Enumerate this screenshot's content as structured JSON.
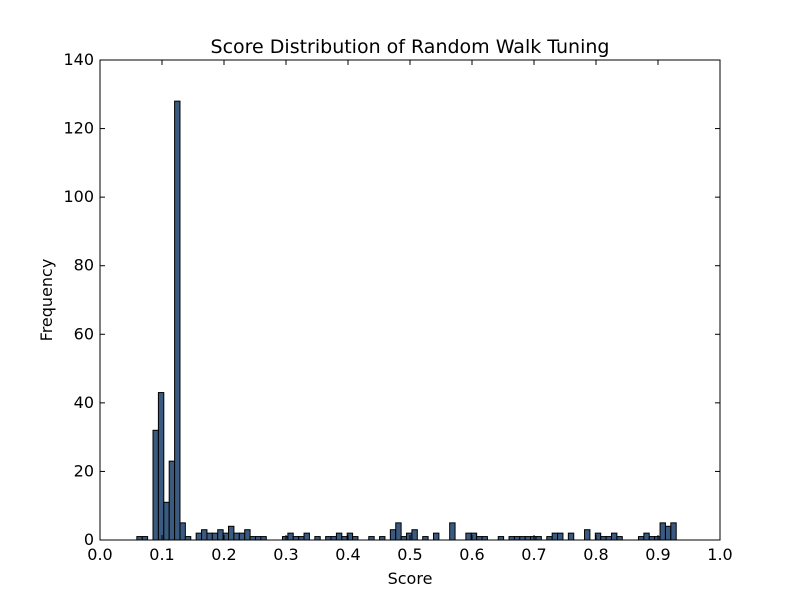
{
  "chart_data": {
    "type": "bar",
    "title": "Score Distribution of Random Walk Tuning",
    "xlabel": "Score",
    "ylabel": "Frequency",
    "xlim": [
      0.0,
      1.0
    ],
    "ylim": [
      0,
      140
    ],
    "x_ticks": [
      "0.0",
      "0.1",
      "0.2",
      "0.3",
      "0.4",
      "0.5",
      "0.6",
      "0.7",
      "0.8",
      "0.9",
      "1.0"
    ],
    "y_ticks": [
      "0",
      "20",
      "40",
      "60",
      "80",
      "100",
      "120",
      "140"
    ],
    "grid": false,
    "bar_color": "#3a5a80",
    "bar_edge_color": "#000000",
    "bin_width": 0.00869,
    "bins": [
      {
        "x": 0.0594,
        "y": 1
      },
      {
        "x": 0.0681,
        "y": 1
      },
      {
        "x": 0.0855,
        "y": 32
      },
      {
        "x": 0.0942,
        "y": 43
      },
      {
        "x": 0.1029,
        "y": 11
      },
      {
        "x": 0.1116,
        "y": 23
      },
      {
        "x": 0.1203,
        "y": 128
      },
      {
        "x": 0.129,
        "y": 5
      },
      {
        "x": 0.1377,
        "y": 1
      },
      {
        "x": 0.1551,
        "y": 2
      },
      {
        "x": 0.1638,
        "y": 3
      },
      {
        "x": 0.1725,
        "y": 2
      },
      {
        "x": 0.1812,
        "y": 2
      },
      {
        "x": 0.1899,
        "y": 3
      },
      {
        "x": 0.1986,
        "y": 2
      },
      {
        "x": 0.2073,
        "y": 4
      },
      {
        "x": 0.216,
        "y": 2
      },
      {
        "x": 0.2247,
        "y": 2
      },
      {
        "x": 0.2334,
        "y": 3
      },
      {
        "x": 0.2421,
        "y": 1
      },
      {
        "x": 0.2508,
        "y": 1
      },
      {
        "x": 0.2595,
        "y": 1
      },
      {
        "x": 0.2943,
        "y": 1
      },
      {
        "x": 0.303,
        "y": 2
      },
      {
        "x": 0.3117,
        "y": 1
      },
      {
        "x": 0.3204,
        "y": 1
      },
      {
        "x": 0.3291,
        "y": 2
      },
      {
        "x": 0.3465,
        "y": 1
      },
      {
        "x": 0.3639,
        "y": 1
      },
      {
        "x": 0.3726,
        "y": 1
      },
      {
        "x": 0.3813,
        "y": 2
      },
      {
        "x": 0.39,
        "y": 1
      },
      {
        "x": 0.3987,
        "y": 2
      },
      {
        "x": 0.4074,
        "y": 1
      },
      {
        "x": 0.4335,
        "y": 1
      },
      {
        "x": 0.4509,
        "y": 1
      },
      {
        "x": 0.4683,
        "y": 3
      },
      {
        "x": 0.477,
        "y": 5
      },
      {
        "x": 0.4857,
        "y": 1
      },
      {
        "x": 0.4944,
        "y": 2
      },
      {
        "x": 0.5031,
        "y": 3
      },
      {
        "x": 0.5205,
        "y": 1
      },
      {
        "x": 0.5379,
        "y": 2
      },
      {
        "x": 0.564,
        "y": 5
      },
      {
        "x": 0.5901,
        "y": 2
      },
      {
        "x": 0.5988,
        "y": 2
      },
      {
        "x": 0.6075,
        "y": 1
      },
      {
        "x": 0.6162,
        "y": 1
      },
      {
        "x": 0.6423,
        "y": 1
      },
      {
        "x": 0.6597,
        "y": 1
      },
      {
        "x": 0.6684,
        "y": 1
      },
      {
        "x": 0.6771,
        "y": 1
      },
      {
        "x": 0.6858,
        "y": 1
      },
      {
        "x": 0.6945,
        "y": 1
      },
      {
        "x": 0.7032,
        "y": 1
      },
      {
        "x": 0.7206,
        "y": 1
      },
      {
        "x": 0.7293,
        "y": 2
      },
      {
        "x": 0.738,
        "y": 2
      },
      {
        "x": 0.7554,
        "y": 2
      },
      {
        "x": 0.7815,
        "y": 3
      },
      {
        "x": 0.7989,
        "y": 2
      },
      {
        "x": 0.8076,
        "y": 1
      },
      {
        "x": 0.8163,
        "y": 1
      },
      {
        "x": 0.825,
        "y": 2
      },
      {
        "x": 0.8337,
        "y": 1
      },
      {
        "x": 0.8685,
        "y": 1
      },
      {
        "x": 0.8772,
        "y": 2
      },
      {
        "x": 0.8859,
        "y": 1
      },
      {
        "x": 0.8946,
        "y": 1
      },
      {
        "x": 0.9033,
        "y": 5
      },
      {
        "x": 0.912,
        "y": 4
      },
      {
        "x": 0.9207,
        "y": 5
      }
    ]
  }
}
